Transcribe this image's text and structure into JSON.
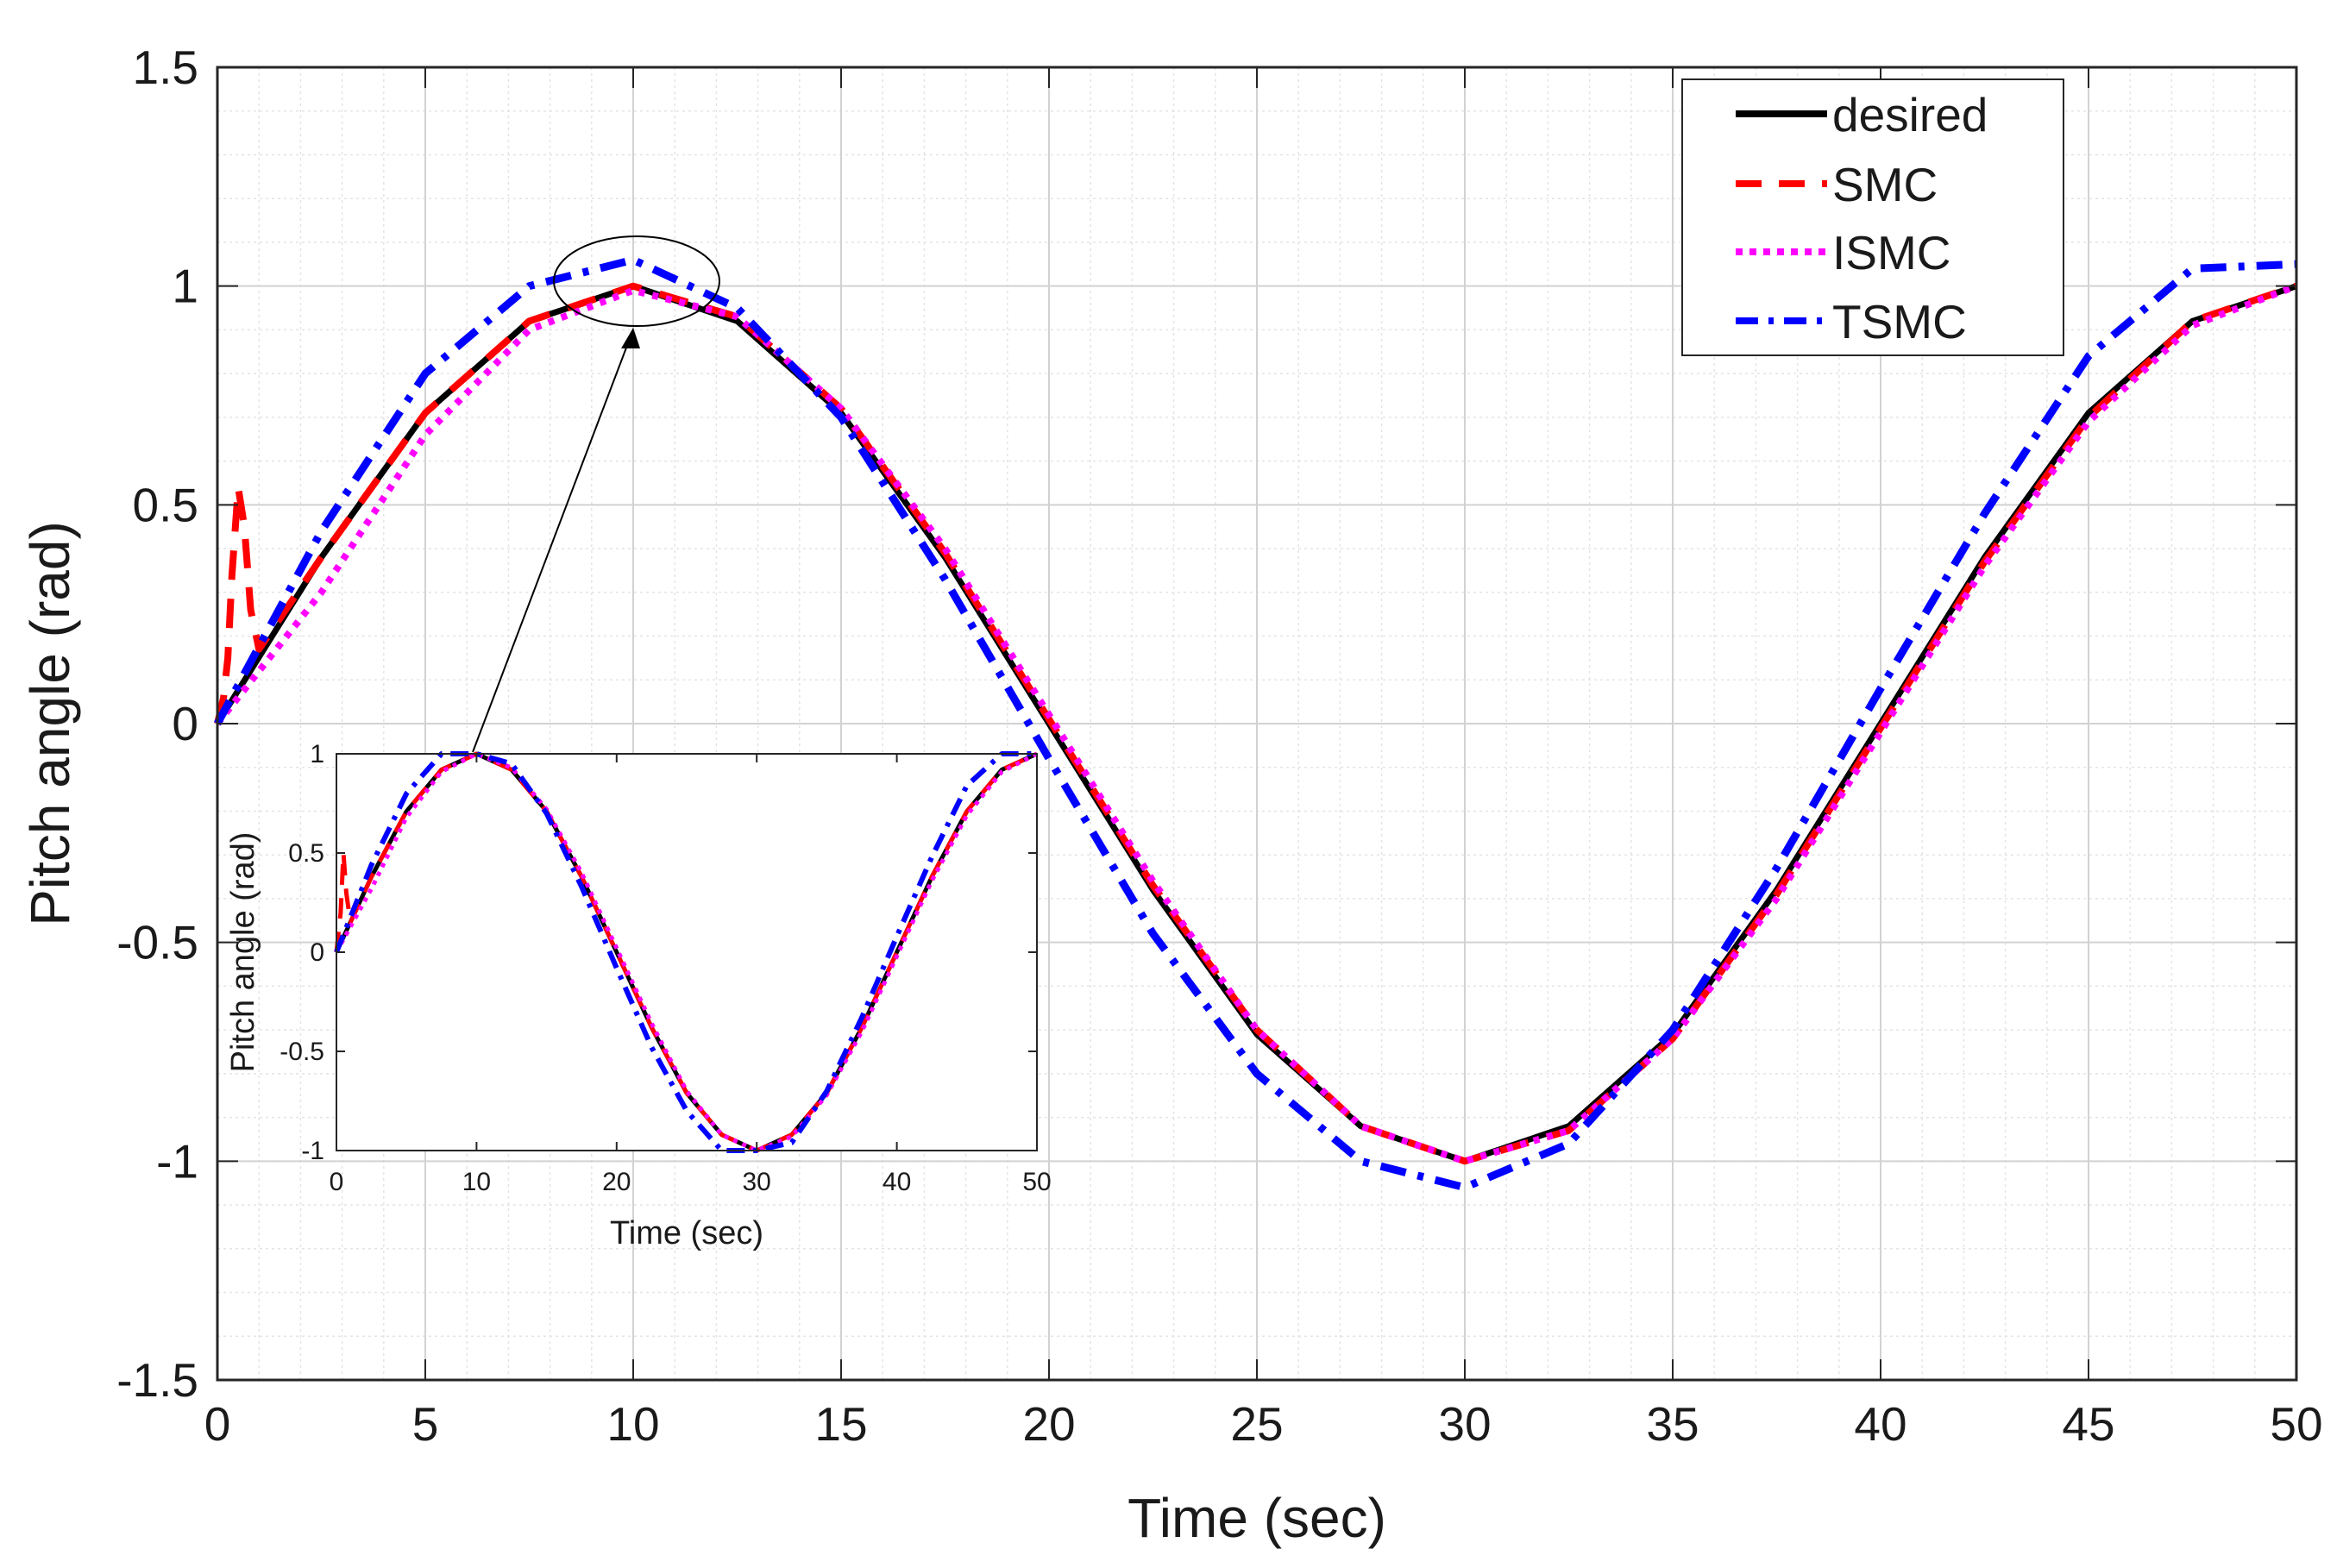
{
  "chart_data": [
    {
      "id": "main",
      "type": "line",
      "xlabel": "Time (sec)",
      "ylabel": "Pitch angle (rad)",
      "xlim": [
        0,
        50
      ],
      "ylim": [
        -1.5,
        1.5
      ],
      "xticks": [
        0,
        5,
        10,
        15,
        20,
        25,
        30,
        35,
        40,
        45,
        50
      ],
      "yticks": [
        -1.5,
        -1,
        -0.5,
        0,
        0.5,
        1,
        1.5
      ],
      "xtick_labels": [
        "0",
        "5",
        "10",
        "15",
        "20",
        "25",
        "30",
        "35",
        "40",
        "45",
        "50"
      ],
      "ytick_labels": [
        "-1.5",
        "-1",
        "-0.5",
        "0",
        "0.5",
        "1",
        "1.5"
      ],
      "grid": true,
      "minor_grid": true,
      "legend_position": "top-right",
      "series": [
        {
          "name": "desired",
          "color": "#000000",
          "style": "solid",
          "x": [
            0,
            2.5,
            5,
            7.5,
            10,
            12.5,
            15,
            17.5,
            20,
            22.5,
            25,
            27.5,
            30,
            32.5,
            35,
            37.5,
            40,
            42.5,
            45,
            47.5,
            50
          ],
          "y": [
            0,
            0.38,
            0.71,
            0.92,
            1.0,
            0.92,
            0.71,
            0.38,
            0,
            -0.38,
            -0.71,
            -0.92,
            -1.0,
            -0.92,
            -0.71,
            -0.38,
            0,
            0.38,
            0.71,
            0.92,
            1.0
          ]
        },
        {
          "name": "SMC",
          "color": "#ff0000",
          "style": "dashed",
          "x": [
            0,
            0.15,
            0.25,
            0.35,
            0.5,
            0.65,
            0.8,
            1.0,
            2.5,
            5,
            7.5,
            10,
            12.5,
            15,
            17.5,
            20,
            22.5,
            25,
            27.5,
            30,
            32.5,
            35,
            37.5,
            40,
            42.5,
            45,
            47.5,
            50
          ],
          "y": [
            0,
            0.06,
            0.15,
            0.34,
            0.54,
            0.45,
            0.26,
            0.17,
            0.38,
            0.71,
            0.92,
            1.0,
            0.93,
            0.72,
            0.39,
            0.01,
            -0.37,
            -0.7,
            -0.92,
            -1.0,
            -0.93,
            -0.72,
            -0.39,
            -0.01,
            0.37,
            0.7,
            0.92,
            1.0
          ]
        },
        {
          "name": "ISMC",
          "color": "#ff00ff",
          "style": "dotted",
          "x": [
            0,
            2.5,
            5,
            7.5,
            10,
            12.5,
            15,
            17.5,
            20,
            22.5,
            25,
            27.5,
            30,
            32.5,
            35,
            37.5,
            40,
            42.5,
            45,
            47.5,
            50
          ],
          "y": [
            0,
            0.3,
            0.66,
            0.9,
            0.99,
            0.93,
            0.72,
            0.4,
            0.02,
            -0.36,
            -0.7,
            -0.92,
            -1.0,
            -0.93,
            -0.72,
            -0.4,
            -0.02,
            0.36,
            0.69,
            0.91,
            1.0
          ]
        },
        {
          "name": "TSMC",
          "color": "#0000ff",
          "style": "dashdot",
          "x": [
            0,
            2.5,
            5,
            7.5,
            10,
            12.5,
            15,
            17.5,
            20,
            22.5,
            25,
            27.5,
            30,
            32.5,
            35,
            37.5,
            40,
            42.5,
            45,
            47.5,
            50
          ],
          "y": [
            0,
            0.44,
            0.8,
            1.0,
            1.06,
            0.95,
            0.7,
            0.33,
            -0.08,
            -0.48,
            -0.8,
            -1.0,
            -1.06,
            -0.96,
            -0.7,
            -0.33,
            0.08,
            0.48,
            0.84,
            1.04,
            1.05
          ]
        }
      ]
    },
    {
      "id": "inset",
      "type": "line",
      "xlabel": "Time (sec)",
      "ylabel": "Pitch angle (rad)",
      "xlim": [
        0,
        50
      ],
      "ylim": [
        -1,
        1
      ],
      "xticks": [
        0,
        10,
        20,
        30,
        40,
        50
      ],
      "yticks": [
        -1,
        -0.5,
        0,
        0.5,
        1
      ],
      "xtick_labels": [
        "0",
        "10",
        "20",
        "30",
        "40",
        "50"
      ],
      "ytick_labels": [
        "-1",
        "-0.5",
        "0",
        "0.5",
        "1"
      ],
      "grid": false,
      "series": [
        {
          "name": "desired",
          "color": "#000000",
          "style": "solid",
          "x": [
            0,
            2.5,
            5,
            7.5,
            10,
            12.5,
            15,
            17.5,
            20,
            22.5,
            25,
            27.5,
            30,
            32.5,
            35,
            37.5,
            40,
            42.5,
            45,
            47.5,
            50
          ],
          "y": [
            0,
            0.38,
            0.71,
            0.92,
            1.0,
            0.92,
            0.71,
            0.38,
            0,
            -0.38,
            -0.71,
            -0.92,
            -1.0,
            -0.92,
            -0.71,
            -0.38,
            0,
            0.38,
            0.71,
            0.92,
            1.0
          ]
        },
        {
          "name": "SMC",
          "color": "#ff0000",
          "style": "dashed",
          "x": [
            0,
            0.3,
            0.5,
            0.7,
            1.0,
            2.5,
            5,
            7.5,
            10,
            12.5,
            15,
            17.5,
            20,
            22.5,
            25,
            27.5,
            30,
            32.5,
            35,
            37.5,
            40,
            42.5,
            45,
            47.5,
            50
          ],
          "y": [
            0,
            0.2,
            0.5,
            0.3,
            0.15,
            0.38,
            0.71,
            0.92,
            1.0,
            0.92,
            0.71,
            0.38,
            0,
            -0.38,
            -0.71,
            -0.92,
            -1.0,
            -0.92,
            -0.71,
            -0.38,
            0,
            0.38,
            0.71,
            0.92,
            1.0
          ]
        },
        {
          "name": "ISMC",
          "color": "#ff00ff",
          "style": "dotted",
          "x": [
            0,
            2.5,
            5,
            7.5,
            10,
            12.5,
            15,
            17.5,
            20,
            22.5,
            25,
            27.5,
            30,
            32.5,
            35,
            37.5,
            40,
            42.5,
            45,
            47.5,
            50
          ],
          "y": [
            0,
            0.32,
            0.68,
            0.91,
            1.0,
            0.93,
            0.72,
            0.4,
            0.02,
            -0.36,
            -0.7,
            -0.92,
            -1.0,
            -0.93,
            -0.72,
            -0.4,
            -0.02,
            0.36,
            0.69,
            0.91,
            1.0
          ]
        },
        {
          "name": "TSMC",
          "color": "#0000ff",
          "style": "dashdot",
          "x": [
            0,
            2.5,
            5,
            7.5,
            10,
            12.5,
            15,
            17.5,
            20,
            22.5,
            25,
            27.5,
            30,
            32.5,
            35,
            37.5,
            40,
            42.5,
            45,
            47.5,
            50
          ],
          "y": [
            0,
            0.44,
            0.8,
            1.0,
            1.0,
            0.95,
            0.7,
            0.33,
            -0.08,
            -0.48,
            -0.8,
            -1.0,
            -1.0,
            -0.96,
            -0.7,
            -0.33,
            0.08,
            0.48,
            0.84,
            1.0,
            1.0
          ]
        }
      ]
    }
  ]
}
